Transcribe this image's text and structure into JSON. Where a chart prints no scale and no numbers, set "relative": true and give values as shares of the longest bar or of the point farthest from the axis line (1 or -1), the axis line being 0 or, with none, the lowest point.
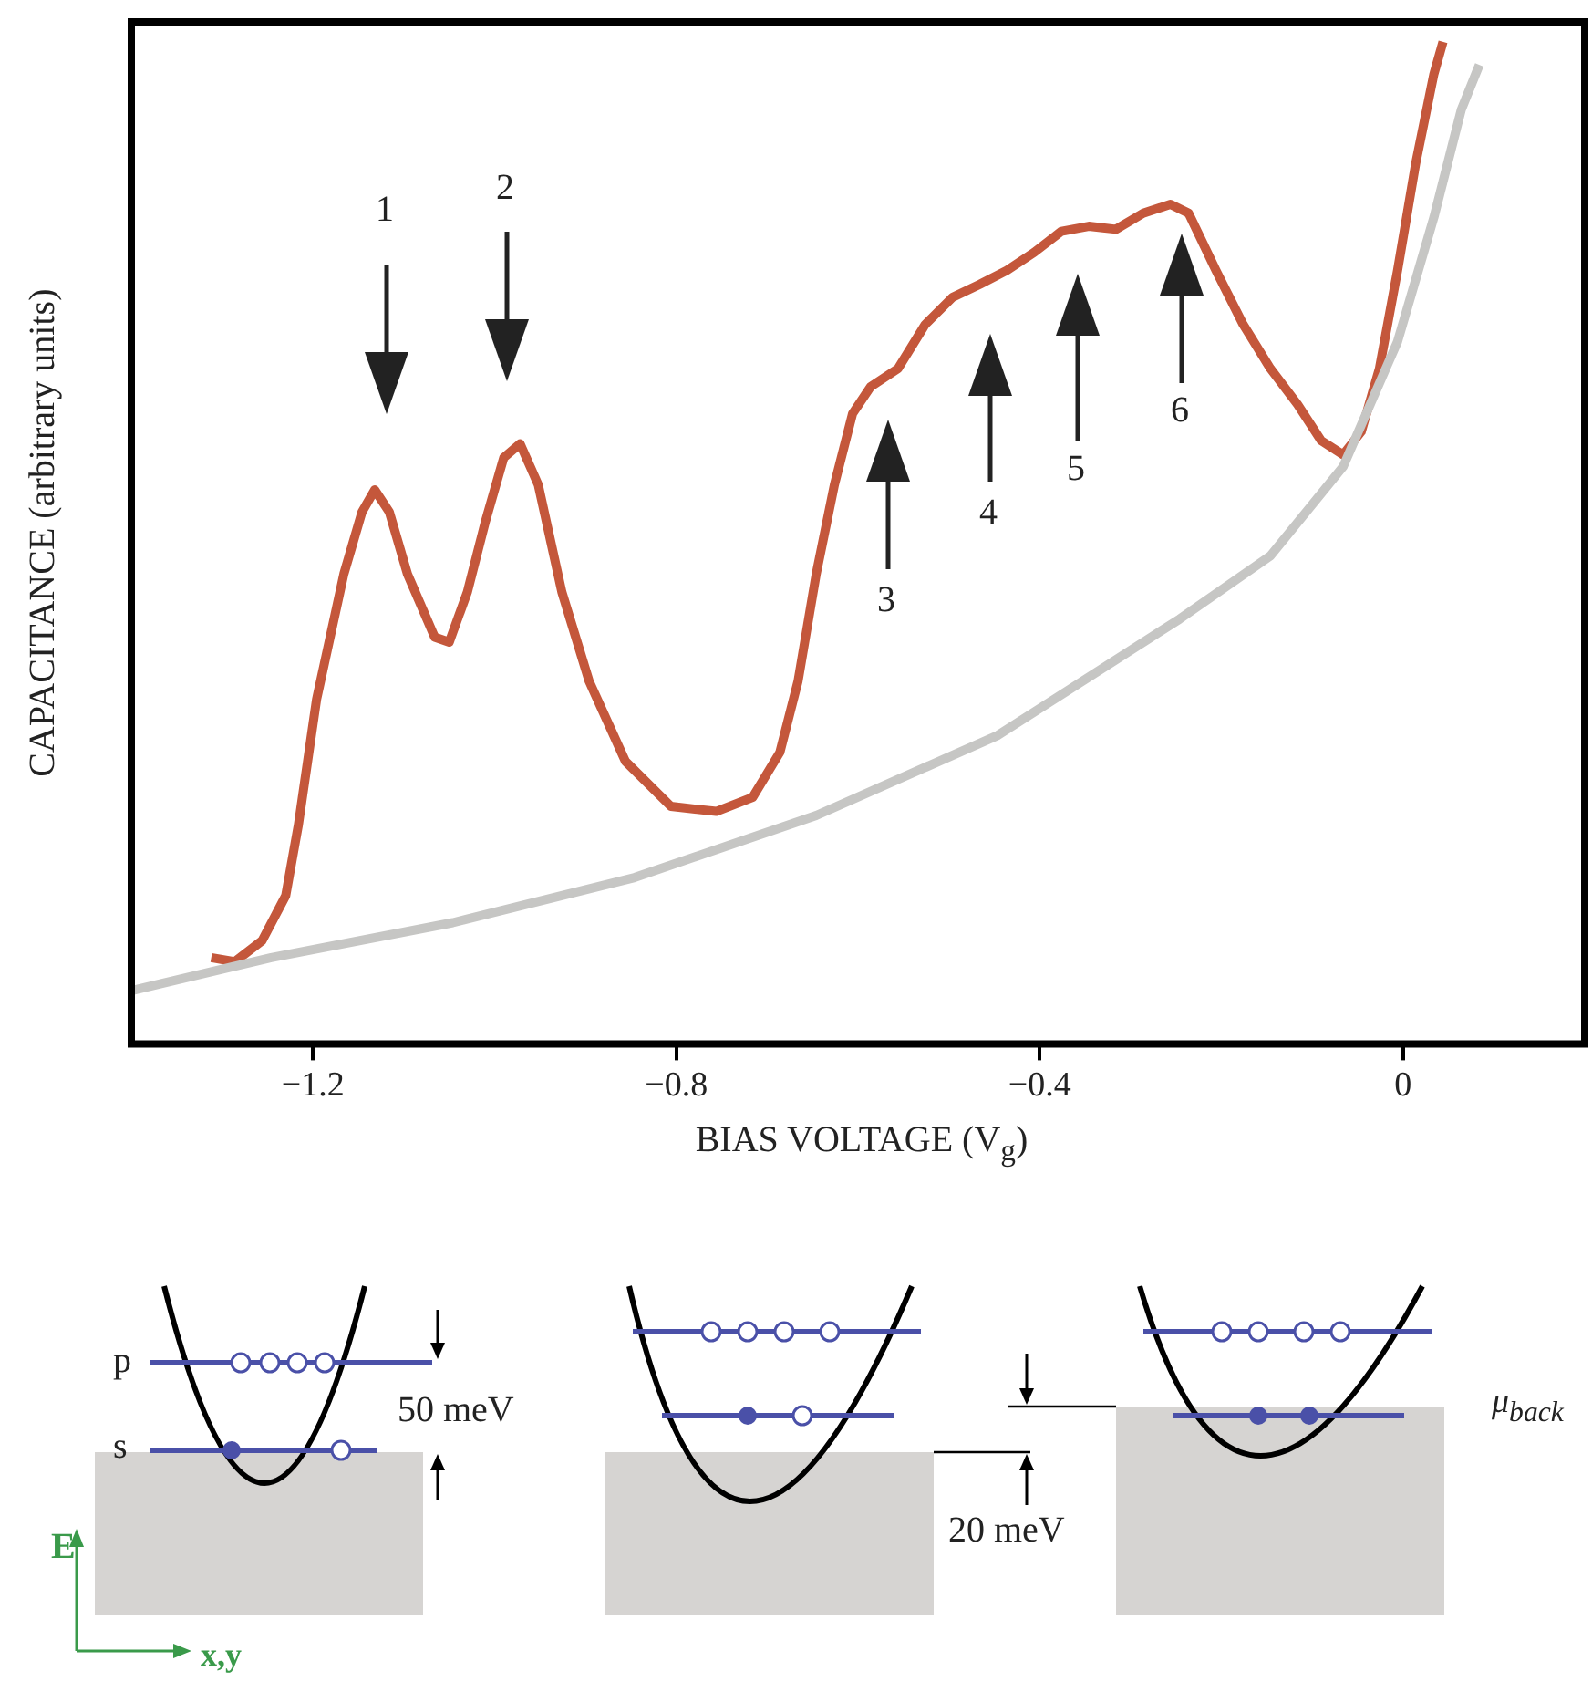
{
  "chart_data": {
    "type": "line",
    "xlabel": "BIAS VOLTAGE (V$_{g}$)",
    "ylabel": "CAPACITANCE (arbitrary units)",
    "relative": true,
    "xlim": [
      -1.4,
      0.2
    ],
    "xticks": [
      {
        "value": -1.2,
        "label": "−1.2"
      },
      {
        "value": -0.8,
        "label": "−0.8"
      },
      {
        "value": -0.4,
        "label": "−0.4"
      },
      0
    ],
    "grid": false,
    "legend": false,
    "marker": "none",
    "line_style": "solid",
    "series": [
      {
        "color": "#c6c6c4",
        "x": [
          -1.4,
          -1.246,
          -1.046,
          -0.846,
          -0.646,
          -0.446,
          -0.246,
          -0.146,
          -0.066,
          -0.006,
          0.034,
          0.064,
          0.084
        ],
        "values": [
          0.053,
          0.086,
          0.121,
          0.166,
          0.228,
          0.308,
          0.424,
          0.487,
          0.576,
          0.701,
          0.825,
          0.932,
          0.977
        ]
      },
      {
        "color": "#c4573b",
        "x": [
          -1.312,
          -1.286,
          -1.256,
          -1.23,
          -1.216,
          -1.196,
          -1.166,
          -1.146,
          -1.132,
          -1.116,
          -1.096,
          -1.066,
          -1.05,
          -1.03,
          -1.01,
          -0.99,
          -0.972,
          -0.952,
          -0.926,
          -0.896,
          -0.856,
          -0.806,
          -0.756,
          -0.716,
          -0.686,
          -0.666,
          -0.646,
          -0.626,
          -0.606,
          -0.586,
          -0.556,
          -0.526,
          -0.496,
          -0.466,
          -0.436,
          -0.406,
          -0.376,
          -0.346,
          -0.316,
          -0.286,
          -0.256,
          -0.236,
          -0.206,
          -0.176,
          -0.146,
          -0.116,
          -0.09,
          -0.066,
          -0.046,
          -0.026,
          -0.006,
          0.014,
          0.034,
          0.044
        ],
        "values": [
          0.086,
          0.082,
          0.103,
          0.148,
          0.219,
          0.344,
          0.469,
          0.531,
          0.553,
          0.531,
          0.469,
          0.406,
          0.401,
          0.451,
          0.522,
          0.585,
          0.599,
          0.558,
          0.451,
          0.362,
          0.282,
          0.237,
          0.232,
          0.246,
          0.291,
          0.362,
          0.469,
          0.558,
          0.629,
          0.656,
          0.674,
          0.718,
          0.745,
          0.758,
          0.772,
          0.79,
          0.811,
          0.816,
          0.813,
          0.829,
          0.838,
          0.829,
          0.772,
          0.718,
          0.674,
          0.638,
          0.602,
          0.588,
          0.611,
          0.674,
          0.772,
          0.879,
          0.968,
          1.0
        ]
      }
    ],
    "annotations": [
      "1",
      "2",
      "3",
      "4",
      "5",
      "6",
      "p",
      "s",
      "50 meV",
      "20 meV",
      "μ$_{back}$",
      "E",
      "x,y"
    ]
  }
}
